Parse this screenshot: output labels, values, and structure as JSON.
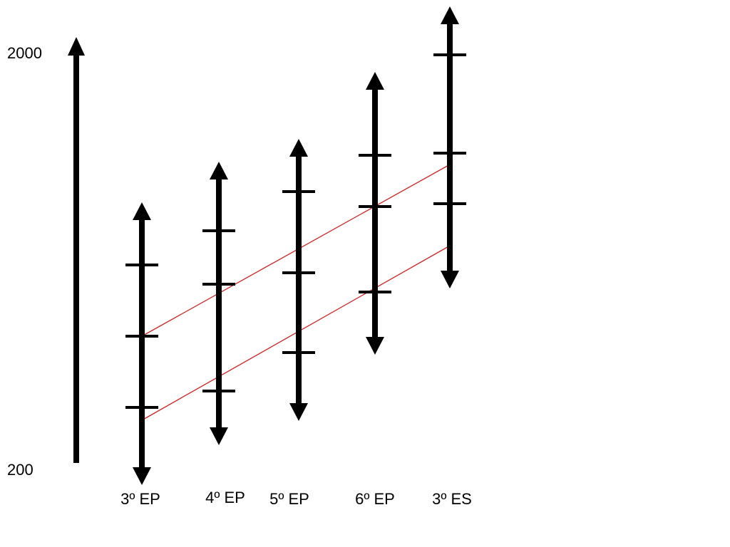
{
  "scale": {
    "max_label": "2000",
    "min_label": "200"
  },
  "colors": {
    "ink": "#000000",
    "connector": "#d02020",
    "background": "#ffffff"
  },
  "grades": [
    {
      "label": "3º EP"
    },
    {
      "label": "4º EP"
    },
    {
      "label": "5º EP"
    },
    {
      "label": "6º EP"
    },
    {
      "label": "3º ES"
    }
  ],
  "connector_count": 2
}
